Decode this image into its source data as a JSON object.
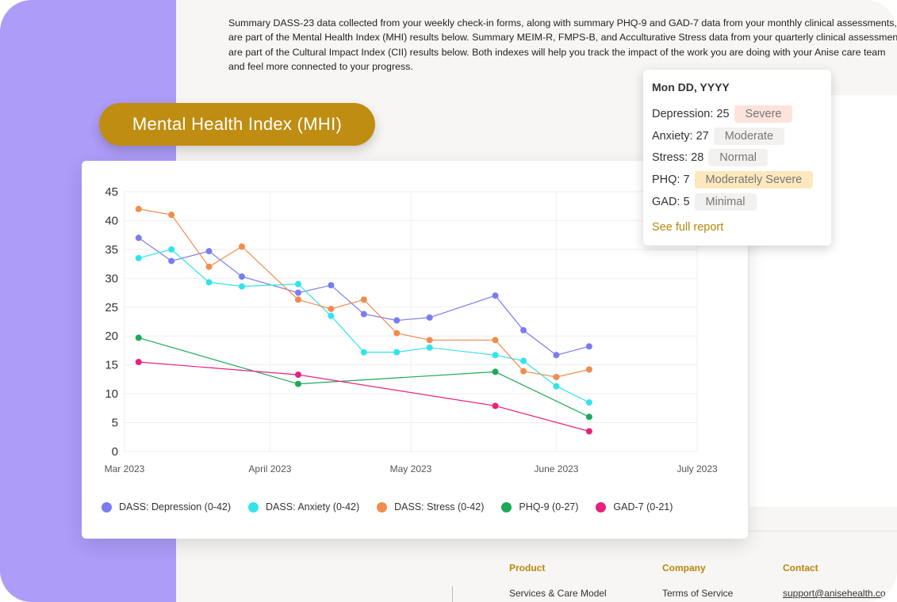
{
  "intro": {
    "lines": [
      "Summary DASS-23 data collected from your weekly check-in forms, along with summary PHQ-9 and GAD-7 data from your monthly clinical assessments,",
      "are part of the Mental Health Index (MHI) results below. Summary MEIM-R, FMPS-B, and Acculturative Stress data from your quarterly clinical assessments",
      "are part of the Cultural Impact Index (CII) results below. Both indexes will help you track the impact of the work you are doing with your Anise care team",
      "and feel more connected to your progress."
    ]
  },
  "section_title": "Mental Health Index (MHI)",
  "tooltip": {
    "date": "Mon DD, YYYY",
    "rows": [
      {
        "label": "Depression: 25",
        "badge": "Severe",
        "badge_bg": "#fde3dc"
      },
      {
        "label": "Anxiety: 27",
        "badge": "Moderate",
        "badge_bg": "#f2f1f0"
      },
      {
        "label": "Stress: 28",
        "badge": "Normal",
        "badge_bg": "#f2f1f0"
      },
      {
        "label": "PHQ: 7",
        "badge": "Moderately Severe",
        "badge_bg": "#fde8bd"
      },
      {
        "label": "GAD: 5",
        "badge": "Minimal",
        "badge_bg": "#f2f1f0"
      }
    ],
    "link": "See full report"
  },
  "footer": {
    "columns": [
      {
        "heading": "Product",
        "link": "Services & Care Model"
      },
      {
        "heading": "Company",
        "link": "Terms of Service"
      },
      {
        "heading": "Contact",
        "link": "support@anisehealth.co"
      }
    ]
  },
  "chart_data": {
    "type": "line",
    "title": "",
    "xlabel": "",
    "ylabel": "",
    "ylim": [
      0,
      45
    ],
    "yticks": [
      0,
      5,
      10,
      15,
      20,
      25,
      30,
      35,
      40,
      45
    ],
    "xticks": [
      "2023-03-01",
      "2023-04-01",
      "2023-05-01",
      "2023-06-01",
      "2023-07-01"
    ],
    "xtick_labels": [
      "Mar 2023",
      "April 2023",
      "May 2023",
      "June 2023",
      "July 2023"
    ],
    "xlim": [
      "2023-03-01",
      "2023-07-01"
    ],
    "grid": true,
    "legend_position": "bottom",
    "series": [
      {
        "name": "DASS: Depression (0-42)",
        "color": "#7b7cf0",
        "points": [
          [
            "2023-03-04",
            37
          ],
          [
            "2023-03-11",
            33
          ],
          [
            "2023-03-19",
            34.7
          ],
          [
            "2023-03-26",
            30.3
          ],
          [
            "2023-04-07",
            27.5
          ],
          [
            "2023-04-14",
            28.8
          ],
          [
            "2023-04-21",
            23.8
          ],
          [
            "2023-04-28",
            22.7
          ],
          [
            "2023-05-05",
            23.2
          ],
          [
            "2023-05-19",
            27
          ],
          [
            "2023-05-25",
            21
          ],
          [
            "2023-06-01",
            16.7
          ],
          [
            "2023-06-08",
            18.2
          ]
        ]
      },
      {
        "name": "DASS: Anxiety (0-42)",
        "color": "#33e3ec",
        "points": [
          [
            "2023-03-04",
            33.5
          ],
          [
            "2023-03-11",
            35
          ],
          [
            "2023-03-19",
            29.3
          ],
          [
            "2023-03-26",
            28.6
          ],
          [
            "2023-04-07",
            29
          ],
          [
            "2023-04-14",
            23.5
          ],
          [
            "2023-04-21",
            17.2
          ],
          [
            "2023-04-28",
            17.2
          ],
          [
            "2023-05-05",
            18
          ],
          [
            "2023-05-19",
            16.7
          ],
          [
            "2023-05-25",
            15.7
          ],
          [
            "2023-06-01",
            11.3
          ],
          [
            "2023-06-08",
            8.5
          ]
        ]
      },
      {
        "name": "DASS: Stress (0-42)",
        "color": "#f08c4d",
        "points": [
          [
            "2023-03-04",
            42
          ],
          [
            "2023-03-11",
            41
          ],
          [
            "2023-03-19",
            32
          ],
          [
            "2023-03-26",
            35.5
          ],
          [
            "2023-04-07",
            26.3
          ],
          [
            "2023-04-14",
            24.7
          ],
          [
            "2023-04-21",
            26.3
          ],
          [
            "2023-04-28",
            20.5
          ],
          [
            "2023-05-05",
            19.3
          ],
          [
            "2023-05-19",
            19.3
          ],
          [
            "2023-05-25",
            13.9
          ],
          [
            "2023-06-01",
            12.9
          ],
          [
            "2023-06-08",
            14.2
          ]
        ]
      },
      {
        "name": "PHQ-9 (0-27)",
        "color": "#1ea85a",
        "points": [
          [
            "2023-03-04",
            19.7
          ],
          [
            "2023-04-07",
            11.7
          ],
          [
            "2023-05-19",
            13.8
          ],
          [
            "2023-06-08",
            6
          ]
        ]
      },
      {
        "name": "GAD-7 (0-21)",
        "color": "#e8217e",
        "points": [
          [
            "2023-03-04",
            15.5
          ],
          [
            "2023-04-07",
            13.3
          ],
          [
            "2023-05-19",
            7.9
          ],
          [
            "2023-06-08",
            3.5
          ]
        ]
      }
    ]
  }
}
